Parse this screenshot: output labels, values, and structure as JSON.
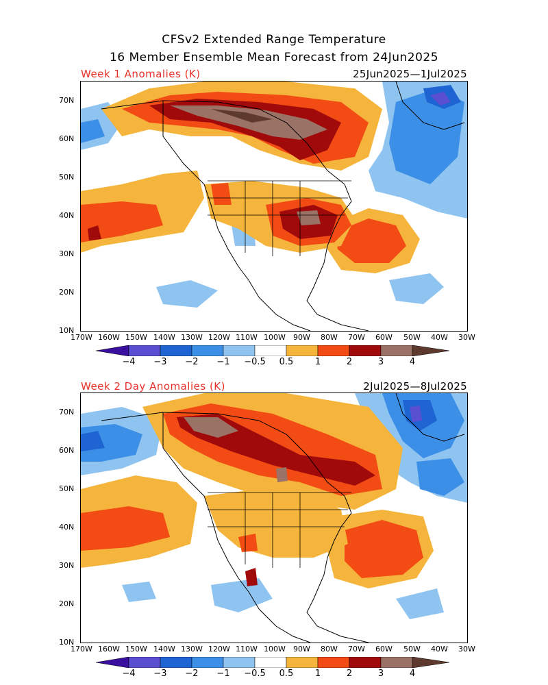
{
  "title_line1": "CFSv2 Extended Range Temperature",
  "title_line2": "16 Member Ensemble Mean Forecast from 24Jun2025",
  "panels": [
    {
      "label": "Week 1 Anomalies (K)",
      "date_range": "25Jun2025—1Jul2025"
    },
    {
      "label": "Week 2 Day Anomalies (K)",
      "date_range": "2Jul2025—8Jul2025"
    }
  ],
  "label_color": "#e8312a",
  "lat_ticks": [
    "70N",
    "60N",
    "50N",
    "40N",
    "30N",
    "20N",
    "10N"
  ],
  "lon_ticks": [
    "170W",
    "160W",
    "150W",
    "140W",
    "130W",
    "120W",
    "110W",
    "100W",
    "90W",
    "80W",
    "70W",
    "60W",
    "50W",
    "40W",
    "30W"
  ],
  "colorbar": {
    "labels": [
      "−4",
      "−3",
      "−2",
      "−1",
      "−0.5",
      "0.5",
      "1",
      "2",
      "3",
      "4"
    ],
    "colors": [
      "#3a0fa0",
      "#5a4fd0",
      "#1e64d2",
      "#3c8fe6",
      "#8fc4f0",
      "#ffffff",
      "#f5b43c",
      "#f24b14",
      "#a00a0a",
      "#9b7366",
      "#5e3a2e"
    ]
  }
}
